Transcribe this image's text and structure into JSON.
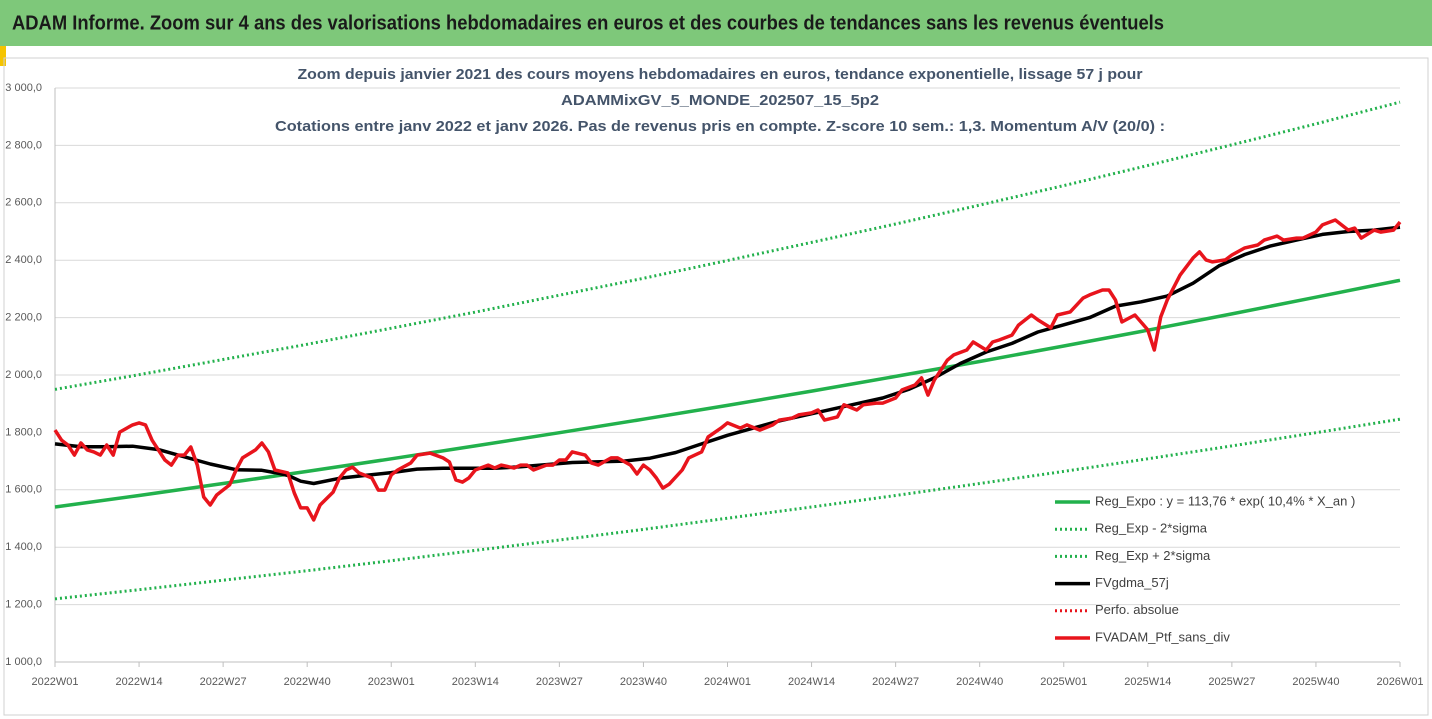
{
  "header": {
    "title": "ADAM Informe. Zoom sur 4 ans des valorisations hebdomadaires en euros et des courbes de tendances sans les revenus éventuels"
  },
  "chart_data": {
    "type": "line",
    "title": [
      "Zoom depuis janvier 2021 des cours moyens hebdomadaires  en euros, tendance exponentielle, lissage 57 j pour",
      "ADAMMixGV_5_MONDE_202507_15_5p2",
      "Cotations  entre janv 2022 et janv 2026. Pas de revenus pris en compte. Z-score 10 sem.: 1,3. Momentum A/V (20/0) :"
    ],
    "xlim": [
      0,
      208
    ],
    "xticks": [
      {
        "value": 0,
        "label": "2022W01"
      },
      {
        "value": 13,
        "label": "2022W14"
      },
      {
        "value": 26,
        "label": "2022W27"
      },
      {
        "value": 39,
        "label": "2022W40"
      },
      {
        "value": 52,
        "label": "2023W01"
      },
      {
        "value": 65,
        "label": "2023W14"
      },
      {
        "value": 78,
        "label": "2023W27"
      },
      {
        "value": 91,
        "label": "2023W40"
      },
      {
        "value": 104,
        "label": "2024W01"
      },
      {
        "value": 117,
        "label": "2024W14"
      },
      {
        "value": 130,
        "label": "2024W27"
      },
      {
        "value": 143,
        "label": "2024W40"
      },
      {
        "value": 156,
        "label": "2025W01"
      },
      {
        "value": 169,
        "label": "2025W14"
      },
      {
        "value": 182,
        "label": "2025W27"
      },
      {
        "value": 195,
        "label": "2025W40"
      },
      {
        "value": 208,
        "label": "2026W01"
      }
    ],
    "ylim": [
      1000,
      3000
    ],
    "yticks": [
      {
        "value": 1000,
        "label": "1 000,0"
      },
      {
        "value": 1200,
        "label": "1 200,0"
      },
      {
        "value": 1400,
        "label": "1 400,0"
      },
      {
        "value": 1600,
        "label": "1 600,0"
      },
      {
        "value": 1800,
        "label": "1 800,0"
      },
      {
        "value": 2000,
        "label": "2 000,0"
      },
      {
        "value": 2200,
        "label": "2 200,0"
      },
      {
        "value": 2400,
        "label": "2 400,0"
      },
      {
        "value": 2600,
        "label": "2 600,0"
      },
      {
        "value": 2800,
        "label": "2 800,0"
      },
      {
        "value": 3000,
        "label": "3 000,0"
      }
    ],
    "grid": true,
    "series": [
      {
        "name": "Reg_Expo : y = 113,76 * exp( 10,4% *  X_an )",
        "color": "#22b14c",
        "style": "solid",
        "x": [
          0,
          13,
          26,
          39,
          52,
          65,
          78,
          91,
          104,
          117,
          130,
          143,
          156,
          169,
          182,
          195,
          208
        ],
        "values": [
          1540,
          1580,
          1622,
          1664,
          1708,
          1753,
          1799,
          1846,
          1894,
          1944,
          1995,
          2047,
          2101,
          2156,
          2213,
          2271,
          2330
        ]
      },
      {
        "name": "Reg_Exp - 2*sigma",
        "color": "#22b14c",
        "style": "dotted",
        "x": [
          0,
          13,
          26,
          39,
          52,
          65,
          78,
          91,
          104,
          117,
          130,
          143,
          156,
          169,
          182,
          195,
          208
        ],
        "values": [
          1220,
          1252,
          1285,
          1318,
          1353,
          1389,
          1425,
          1462,
          1501,
          1540,
          1580,
          1622,
          1664,
          1708,
          1753,
          1799,
          1846
        ]
      },
      {
        "name": "Reg_Exp + 2*sigma",
        "color": "#22b14c",
        "style": "dotted",
        "x": [
          0,
          13,
          26,
          39,
          52,
          65,
          78,
          91,
          104,
          117,
          130,
          143,
          156,
          169,
          182,
          195,
          208
        ],
        "values": [
          1950,
          2001,
          2054,
          2107,
          2163,
          2219,
          2278,
          2337,
          2399,
          2462,
          2526,
          2592,
          2660,
          2730,
          2802,
          2875,
          2951
        ]
      },
      {
        "name": "FVgdma_57j",
        "color": "#000000",
        "style": "solid",
        "x": [
          0,
          4,
          8,
          12,
          16,
          20,
          24,
          28,
          32,
          34,
          36,
          38,
          40,
          44,
          48,
          52,
          56,
          60,
          68,
          72,
          80,
          88,
          92,
          96,
          100,
          104,
          108,
          112,
          116,
          120,
          124,
          128,
          132,
          136,
          140,
          144,
          148,
          152,
          156,
          160,
          164,
          168,
          172,
          176,
          180,
          184,
          188,
          192,
          196,
          200,
          204,
          208
        ],
        "values": [
          1760,
          1750,
          1750,
          1752,
          1740,
          1715,
          1690,
          1670,
          1668,
          1660,
          1650,
          1630,
          1622,
          1640,
          1650,
          1660,
          1672,
          1675,
          1675,
          1680,
          1695,
          1700,
          1710,
          1730,
          1760,
          1790,
          1815,
          1840,
          1860,
          1880,
          1900,
          1920,
          1950,
          1990,
          2040,
          2080,
          2110,
          2150,
          2175,
          2200,
          2240,
          2255,
          2275,
          2320,
          2380,
          2420,
          2450,
          2470,
          2490,
          2500,
          2505,
          2515
        ]
      },
      {
        "name": "Perfo. absolue",
        "color": "#e8141c",
        "style": "dotted",
        "x": [],
        "values": []
      },
      {
        "name": "FVADAM_Ptf_sans_div",
        "color": "#e8141c",
        "style": "solid",
        "x": [
          0,
          1,
          2,
          3,
          4,
          5,
          6,
          7,
          8,
          9,
          10,
          12,
          13,
          14,
          15,
          17,
          18,
          19,
          20,
          21,
          22,
          23,
          24,
          25,
          27,
          28,
          29,
          31,
          32,
          33,
          34,
          36,
          37,
          38,
          39,
          40,
          41,
          43,
          44,
          45,
          46,
          47,
          49,
          50,
          51,
          52,
          53,
          55,
          56,
          58,
          60,
          61,
          62,
          63,
          64,
          65,
          67,
          68,
          69,
          71,
          72,
          73,
          74,
          76,
          77,
          78,
          79,
          80,
          82,
          83,
          84,
          86,
          87,
          89,
          90,
          91,
          92,
          93,
          94,
          95,
          97,
          98,
          100,
          101,
          103,
          104,
          106,
          107,
          109,
          111,
          112,
          114,
          115,
          117,
          118,
          119,
          121,
          122,
          124,
          125,
          127,
          128,
          130,
          131,
          133,
          134,
          135,
          136,
          138,
          139,
          141,
          142,
          144,
          145,
          146,
          148,
          149,
          151,
          152,
          154,
          155,
          157,
          159,
          160,
          162,
          163,
          164,
          165,
          167,
          169,
          170,
          171,
          172,
          174,
          176,
          177,
          178,
          179,
          181,
          182,
          184,
          186,
          187,
          189,
          190,
          192,
          193,
          195,
          196,
          198,
          200,
          201,
          202,
          204,
          205,
          207,
          208
        ],
        "values": [
          1808,
          1773,
          1756,
          1721,
          1763,
          1739,
          1732,
          1721,
          1756,
          1721,
          1801,
          1826,
          1833,
          1826,
          1773,
          1704,
          1686,
          1721,
          1721,
          1749,
          1686,
          1575,
          1547,
          1582,
          1617,
          1669,
          1711,
          1739,
          1763,
          1732,
          1669,
          1659,
          1589,
          1537,
          1537,
          1495,
          1547,
          1592,
          1641,
          1669,
          1679,
          1659,
          1641,
          1599,
          1599,
          1652,
          1669,
          1693,
          1721,
          1728,
          1711,
          1697,
          1634,
          1627,
          1641,
          1669,
          1686,
          1676,
          1686,
          1676,
          1686,
          1686,
          1669,
          1686,
          1686,
          1704,
          1704,
          1732,
          1721,
          1693,
          1686,
          1711,
          1711,
          1686,
          1655,
          1686,
          1669,
          1641,
          1606,
          1620,
          1669,
          1711,
          1732,
          1784,
          1815,
          1833,
          1815,
          1826,
          1808,
          1826,
          1843,
          1850,
          1861,
          1868,
          1878,
          1843,
          1854,
          1896,
          1878,
          1896,
          1902,
          1902,
          1920,
          1948,
          1965,
          1990,
          1930,
          1983,
          2052,
          2070,
          2087,
          2115,
          2087,
          2115,
          2122,
          2139,
          2174,
          2209,
          2192,
          2164,
          2209,
          2220,
          2268,
          2279,
          2296,
          2296,
          2261,
          2185,
          2209,
          2157,
          2087,
          2202,
          2261,
          2348,
          2408,
          2429,
          2401,
          2394,
          2401,
          2418,
          2443,
          2453,
          2470,
          2484,
          2470,
          2477,
          2477,
          2498,
          2523,
          2540,
          2505,
          2512,
          2477,
          2505,
          2498,
          2505,
          2533
        ]
      }
    ]
  }
}
